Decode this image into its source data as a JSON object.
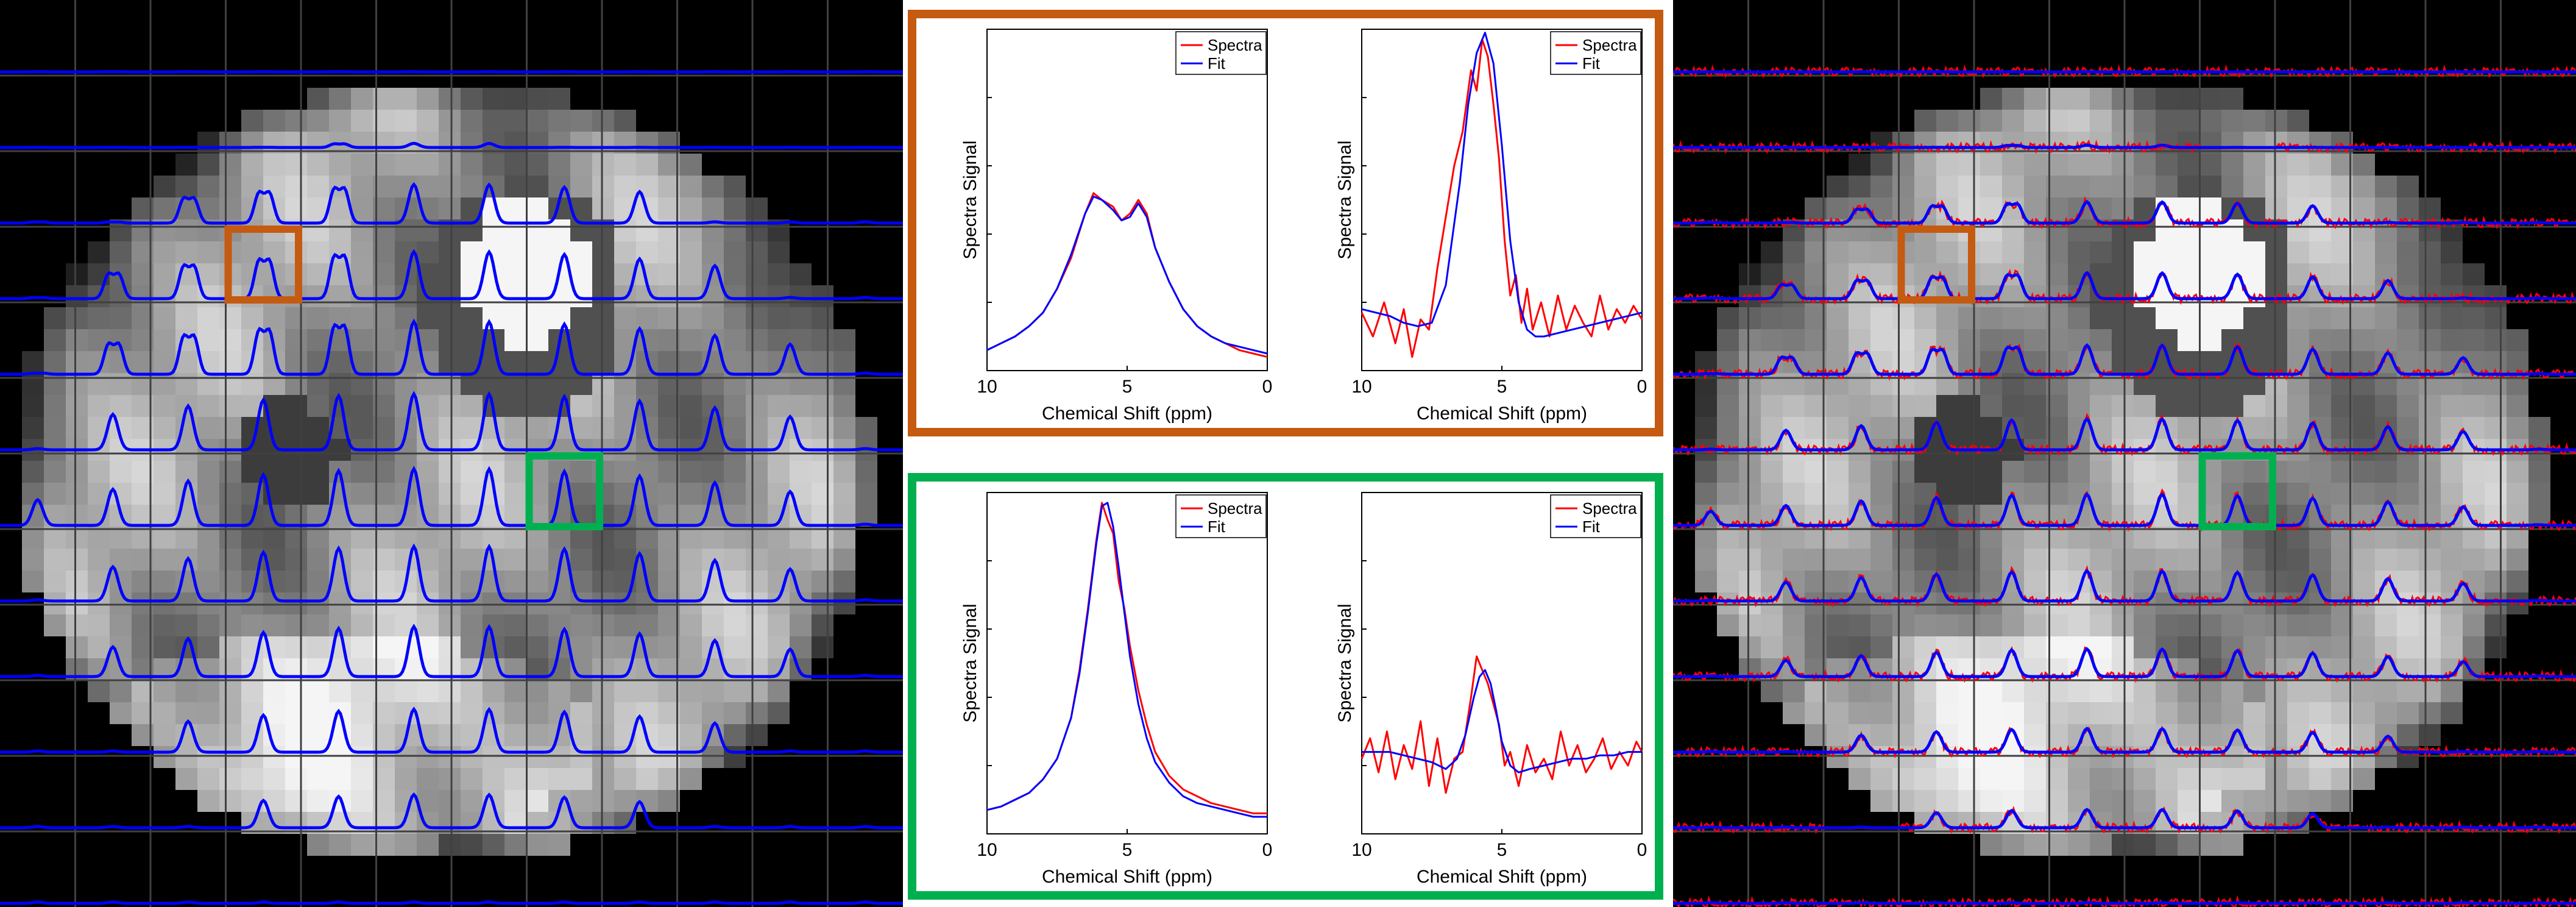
{
  "colors": {
    "orange": "#C55A11",
    "green": "#00B050",
    "spectra": "#FF0000",
    "fit": "#0000FF",
    "grid_line": "#404040"
  },
  "chart_data": [
    {
      "type": "line",
      "panel": "orange-left",
      "title": "",
      "xlabel": "Chemical Shift (ppm)",
      "ylabel": "Spectra Signal",
      "xlim": [
        10,
        0
      ],
      "x_reversed": true,
      "xticks": [
        "10",
        "5",
        "0"
      ],
      "ylim": [
        0,
        1
      ],
      "legend": "top-right",
      "series": [
        {
          "name": "Spectra",
          "color": "#FF0000",
          "x": [
            10,
            9.5,
            9,
            8.5,
            8,
            7.5,
            7,
            6.5,
            6.2,
            5.9,
            5.5,
            5.2,
            4.9,
            4.6,
            4.3,
            4,
            3.5,
            3,
            2.5,
            2,
            1.5,
            1,
            0.5,
            0
          ],
          "y": [
            0.06,
            0.08,
            0.1,
            0.13,
            0.17,
            0.24,
            0.33,
            0.46,
            0.52,
            0.5,
            0.48,
            0.44,
            0.46,
            0.5,
            0.46,
            0.36,
            0.26,
            0.18,
            0.13,
            0.1,
            0.08,
            0.06,
            0.05,
            0.04
          ]
        },
        {
          "name": "Fit",
          "color": "#0000FF",
          "x": [
            10,
            9.5,
            9,
            8.5,
            8,
            7.5,
            7,
            6.5,
            6.2,
            5.9,
            5.5,
            5.2,
            4.9,
            4.6,
            4.3,
            4,
            3.5,
            3,
            2.5,
            2,
            1.5,
            1,
            0.5,
            0
          ],
          "y": [
            0.06,
            0.08,
            0.1,
            0.13,
            0.17,
            0.24,
            0.34,
            0.46,
            0.51,
            0.5,
            0.47,
            0.44,
            0.45,
            0.49,
            0.45,
            0.36,
            0.26,
            0.18,
            0.13,
            0.1,
            0.08,
            0.07,
            0.06,
            0.05
          ]
        }
      ]
    },
    {
      "type": "line",
      "panel": "orange-right",
      "title": "",
      "xlabel": "Chemical Shift (ppm)",
      "ylabel": "Spectra Signal",
      "xlim": [
        10,
        0
      ],
      "x_reversed": true,
      "xticks": [
        "10",
        "5",
        "0"
      ],
      "ylim": [
        0,
        1
      ],
      "legend": "top-right",
      "series": [
        {
          "name": "Spectra",
          "color": "#FF0000",
          "x": [
            10,
            9.6,
            9.2,
            8.8,
            8.5,
            8.2,
            7.9,
            7.6,
            7.3,
            7.0,
            6.7,
            6.4,
            6.1,
            5.9,
            5.7,
            5.5,
            5.3,
            5.1,
            4.9,
            4.7,
            4.5,
            4.3,
            4.1,
            3.9,
            3.6,
            3.3,
            3.0,
            2.7,
            2.4,
            2.1,
            1.8,
            1.5,
            1.2,
            0.9,
            0.6,
            0.3,
            0
          ],
          "y": [
            0.17,
            0.1,
            0.2,
            0.08,
            0.18,
            0.04,
            0.15,
            0.12,
            0.3,
            0.45,
            0.6,
            0.7,
            0.88,
            0.82,
            0.97,
            0.92,
            0.78,
            0.62,
            0.38,
            0.22,
            0.28,
            0.14,
            0.24,
            0.12,
            0.2,
            0.1,
            0.22,
            0.12,
            0.19,
            0.14,
            0.1,
            0.22,
            0.12,
            0.18,
            0.14,
            0.19,
            0.15
          ]
        },
        {
          "name": "Fit",
          "color": "#0000FF",
          "x": [
            10,
            9,
            8.5,
            8,
            7.5,
            7,
            6.5,
            6.2,
            5.9,
            5.6,
            5.3,
            5.0,
            4.7,
            4.4,
            4.1,
            3.8,
            3.5,
            3,
            2.5,
            2,
            1.5,
            1,
            0.5,
            0
          ],
          "y": [
            0.18,
            0.16,
            0.14,
            0.13,
            0.14,
            0.25,
            0.55,
            0.78,
            0.93,
            0.99,
            0.9,
            0.66,
            0.38,
            0.2,
            0.12,
            0.1,
            0.1,
            0.11,
            0.12,
            0.13,
            0.14,
            0.15,
            0.16,
            0.17
          ]
        }
      ]
    },
    {
      "type": "line",
      "panel": "green-left",
      "title": "",
      "xlabel": "Chemical Shift (ppm)",
      "ylabel": "Spectra Signal",
      "xlim": [
        10,
        0
      ],
      "x_reversed": true,
      "xticks": [
        "10",
        "5",
        "0"
      ],
      "ylim": [
        0,
        1
      ],
      "legend": "top-right",
      "series": [
        {
          "name": "Spectra",
          "color": "#FF0000",
          "x": [
            10,
            9.5,
            9,
            8.5,
            8,
            7.5,
            7,
            6.7,
            6.4,
            6.1,
            5.9,
            5.7,
            5.5,
            5.3,
            5.1,
            4.9,
            4.6,
            4.3,
            4,
            3.5,
            3,
            2.5,
            2,
            1.5,
            1,
            0.5,
            0
          ],
          "y": [
            0.07,
            0.08,
            0.1,
            0.12,
            0.16,
            0.22,
            0.34,
            0.48,
            0.66,
            0.86,
            0.97,
            0.92,
            0.88,
            0.74,
            0.66,
            0.55,
            0.42,
            0.32,
            0.24,
            0.17,
            0.13,
            0.11,
            0.09,
            0.08,
            0.07,
            0.06,
            0.06
          ]
        },
        {
          "name": "Fit",
          "color": "#0000FF",
          "x": [
            10,
            9.5,
            9,
            8.5,
            8,
            7.5,
            7,
            6.7,
            6.4,
            6.1,
            5.9,
            5.7,
            5.5,
            5.3,
            5.1,
            4.9,
            4.6,
            4.3,
            4,
            3.5,
            3,
            2.5,
            2,
            1.5,
            1,
            0.5,
            0
          ],
          "y": [
            0.07,
            0.08,
            0.1,
            0.12,
            0.16,
            0.22,
            0.34,
            0.47,
            0.65,
            0.85,
            0.96,
            0.97,
            0.9,
            0.78,
            0.65,
            0.52,
            0.38,
            0.28,
            0.21,
            0.15,
            0.11,
            0.09,
            0.08,
            0.07,
            0.06,
            0.05,
            0.05
          ]
        }
      ]
    },
    {
      "type": "line",
      "panel": "green-right",
      "title": "",
      "xlabel": "Chemical Shift (ppm)",
      "ylabel": "Spectra Signal",
      "xlim": [
        10,
        0
      ],
      "x_reversed": true,
      "xticks": [
        "10",
        "5",
        "0"
      ],
      "ylim": [
        0,
        1
      ],
      "legend": "top-right",
      "series": [
        {
          "name": "Spectra",
          "color": "#FF0000",
          "x": [
            10,
            9.7,
            9.4,
            9.1,
            8.8,
            8.5,
            8.2,
            7.9,
            7.6,
            7.3,
            7.0,
            6.7,
            6.4,
            6.1,
            5.9,
            5.7,
            5.5,
            5.3,
            5.1,
            4.9,
            4.7,
            4.4,
            4.1,
            3.8,
            3.5,
            3.2,
            2.9,
            2.6,
            2.3,
            2.0,
            1.7,
            1.4,
            1.1,
            0.8,
            0.5,
            0.2,
            0
          ],
          "y": [
            0.22,
            0.28,
            0.18,
            0.3,
            0.16,
            0.26,
            0.19,
            0.33,
            0.14,
            0.28,
            0.12,
            0.22,
            0.24,
            0.4,
            0.52,
            0.48,
            0.44,
            0.38,
            0.32,
            0.2,
            0.24,
            0.14,
            0.26,
            0.18,
            0.22,
            0.16,
            0.3,
            0.2,
            0.26,
            0.18,
            0.22,
            0.28,
            0.19,
            0.24,
            0.2,
            0.27,
            0.24
          ]
        },
        {
          "name": "Fit",
          "color": "#0000FF",
          "x": [
            10,
            9,
            8.5,
            8,
            7.5,
            7,
            6.6,
            6.3,
            6.0,
            5.8,
            5.6,
            5.4,
            5.2,
            5.0,
            4.7,
            4.4,
            4.0,
            3.5,
            3,
            2.5,
            2,
            1.5,
            1,
            0.5,
            0
          ],
          "y": [
            0.24,
            0.24,
            0.23,
            0.22,
            0.21,
            0.19,
            0.22,
            0.29,
            0.4,
            0.46,
            0.48,
            0.44,
            0.36,
            0.27,
            0.2,
            0.18,
            0.19,
            0.2,
            0.21,
            0.22,
            0.22,
            0.23,
            0.23,
            0.24,
            0.24
          ]
        }
      ]
    }
  ],
  "legend_labels": {
    "spectra": "Spectra",
    "fit": "Fit"
  },
  "grids": {
    "left": {
      "cols": 12,
      "rows": 12,
      "style": "fit-only",
      "rois": [
        {
          "name": "orange-roi",
          "color": "#C55A11",
          "col": 3,
          "row": 3
        },
        {
          "name": "green-roi",
          "color": "#00B050",
          "col": 7,
          "row": 6
        }
      ]
    },
    "right": {
      "cols": 12,
      "rows": 12,
      "style": "spectra-and-fit",
      "rois": [
        {
          "name": "orange-roi",
          "color": "#C55A11",
          "col": 3,
          "row": 3
        },
        {
          "name": "green-roi",
          "color": "#00B050",
          "col": 7,
          "row": 6
        }
      ]
    }
  }
}
